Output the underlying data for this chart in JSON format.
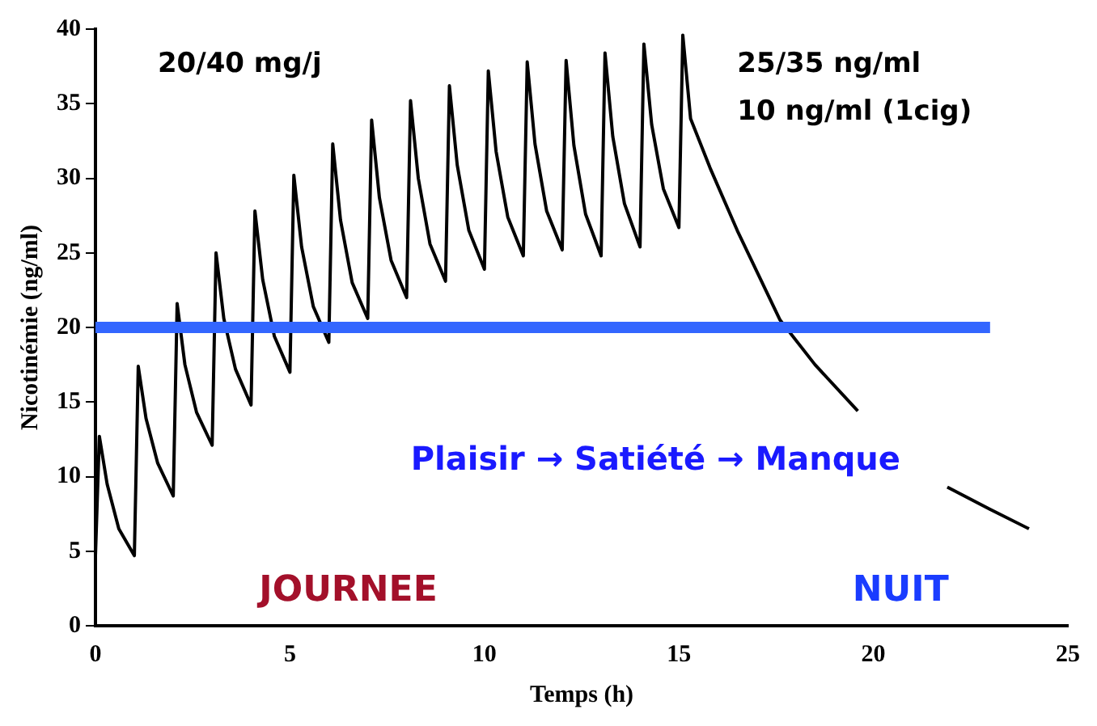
{
  "chart_data": {
    "type": "line",
    "xlabel": "Temps (h)",
    "ylabel": "Nicotinémie (ng/ml)",
    "xlim": [
      0,
      25
    ],
    "xticks": [
      0,
      5,
      10,
      15,
      20,
      25
    ],
    "ylim": [
      0,
      40
    ],
    "yticks": [
      0,
      5,
      10,
      15,
      20,
      25,
      30,
      35,
      40
    ],
    "grid": false,
    "legend": false,
    "marker": "none",
    "line_style": "solid",
    "series": [
      {
        "color": "#000000",
        "x": [
          0,
          0.1,
          0.3,
          0.6,
          1.0,
          1.1,
          1.3,
          1.6,
          2.0,
          2.1,
          2.3,
          2.6,
          3.0,
          3.1,
          3.3,
          3.6,
          4.0,
          4.1,
          4.3,
          4.6,
          5.0,
          5.1,
          5.3,
          5.6,
          6.0,
          6.1,
          6.3,
          6.6,
          7.0,
          7.1,
          7.3,
          7.6,
          8.0,
          8.1,
          8.3,
          8.6,
          9.0,
          9.1,
          9.3,
          9.6,
          10.0,
          10.1,
          10.3,
          10.6,
          11.0,
          11.1,
          11.3,
          11.6,
          12.0,
          12.1,
          12.3,
          12.6,
          13.0,
          13.1,
          13.3,
          13.6,
          14.0,
          14.1,
          14.3,
          14.6,
          15.0,
          15.1,
          15.3,
          15.8,
          16.5,
          17.6,
          18.5,
          19.6,
          20.7,
          21.9,
          23.0,
          24.0
        ],
        "values": [
          4.7,
          12.7,
          9.5,
          6.5,
          4.7,
          17.4,
          13.9,
          10.9,
          8.7,
          21.6,
          17.5,
          14.3,
          12.1,
          25.0,
          20.6,
          17.2,
          14.8,
          27.8,
          23.2,
          19.4,
          17.0,
          30.2,
          25.4,
          21.4,
          19.0,
          32.3,
          27.2,
          23.0,
          20.6,
          33.9,
          28.7,
          24.5,
          22.0,
          35.2,
          30.0,
          25.6,
          23.1,
          36.2,
          30.9,
          26.5,
          23.9,
          37.2,
          31.8,
          27.4,
          24.8,
          37.8,
          32.3,
          27.8,
          25.2,
          37.9,
          32.2,
          27.6,
          24.8,
          38.4,
          32.8,
          28.3,
          25.4,
          39.0,
          33.6,
          29.3,
          26.7,
          39.6,
          34.0,
          30.7,
          26.5,
          20.5,
          17.5,
          14.4,
          null,
          9.3,
          7.8,
          6.5
        ]
      }
    ],
    "ref_lines": [
      {
        "axis": "y",
        "value": 20,
        "color": "#3366ff"
      }
    ],
    "annotations": [
      "20/40 mg/j",
      "25/35 ng/ml",
      "10 ng/ml (1cig)",
      "Plaisir → Satiété → Manque",
      "JOURNEE",
      "NUIT"
    ]
  }
}
